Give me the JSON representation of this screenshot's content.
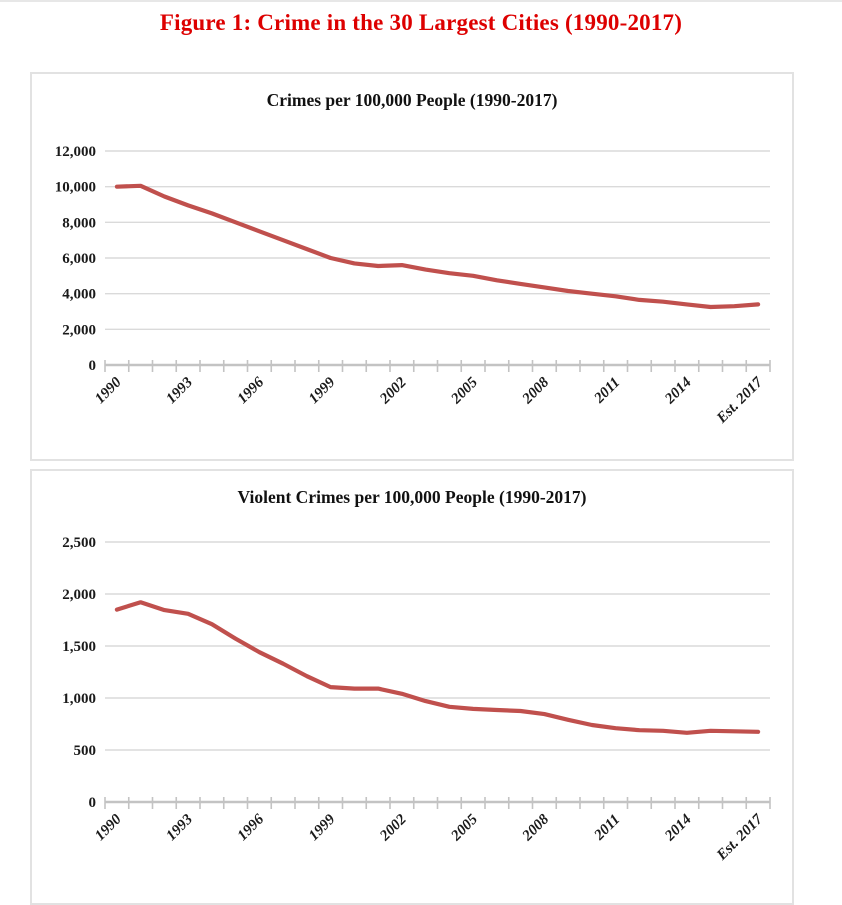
{
  "figure": {
    "title": "Figure 1: Crime in the 30 Largest Cities (1990-2017)"
  },
  "colors": {
    "title_red": "#DD0000",
    "line": "#C0504D",
    "gridline": "#DADADA",
    "axis": "#C3C3C3",
    "box_border": "#E2E2E2",
    "text": "#1A1A1A",
    "top_rule": "#E7E7E7"
  },
  "chart_data": [
    {
      "type": "line",
      "title": "Crimes per 100,000 People (1990-2017)",
      "xlabel": "",
      "ylabel": "",
      "grid": true,
      "legend": "none",
      "ylim": [
        0,
        12000
      ],
      "yticks": [
        {
          "value": 0,
          "label": "0"
        },
        {
          "value": 2000,
          "label": "2,000"
        },
        {
          "value": 4000,
          "label": "4,000"
        },
        {
          "value": 6000,
          "label": "6,000"
        },
        {
          "value": 8000,
          "label": "8,000"
        },
        {
          "value": 10000,
          "label": "10,000"
        },
        {
          "value": 12000,
          "label": "12,000"
        }
      ],
      "x_tick_labels": [
        "1990",
        "1993",
        "1996",
        "1999",
        "2002",
        "2005",
        "2008",
        "2011",
        "2014",
        "Est. 2017"
      ],
      "label_every": 3,
      "years": [
        "1990",
        "1991",
        "1992",
        "1993",
        "1994",
        "1995",
        "1996",
        "1997",
        "1998",
        "1999",
        "2000",
        "2001",
        "2002",
        "2003",
        "2004",
        "2005",
        "2006",
        "2007",
        "2008",
        "2009",
        "2010",
        "2011",
        "2012",
        "2013",
        "2014",
        "2015",
        "2016",
        "Est. 2017"
      ],
      "values": [
        10000,
        10050,
        9450,
        8950,
        8500,
        8000,
        7500,
        7000,
        6500,
        6000,
        5700,
        5550,
        5600,
        5350,
        5150,
        5000,
        4750,
        4550,
        4350,
        4150,
        4000,
        3850,
        3650,
        3550,
        3400,
        3250,
        3300,
        3400
      ]
    },
    {
      "type": "line",
      "title": "Violent Crimes per 100,000 People (1990-2017)",
      "xlabel": "",
      "ylabel": "",
      "grid": true,
      "legend": "none",
      "ylim": [
        0,
        2500
      ],
      "yticks": [
        {
          "value": 0,
          "label": "0"
        },
        {
          "value": 500,
          "label": "500"
        },
        {
          "value": 1000,
          "label": "1,000"
        },
        {
          "value": 1500,
          "label": "1,500"
        },
        {
          "value": 2000,
          "label": "2,000"
        },
        {
          "value": 2500,
          "label": "2,500"
        }
      ],
      "x_tick_labels": [
        "1990",
        "1993",
        "1996",
        "1999",
        "2002",
        "2005",
        "2008",
        "2011",
        "2014",
        "Est. 2017"
      ],
      "label_every": 3,
      "years": [
        "1990",
        "1991",
        "1992",
        "1993",
        "1994",
        "1995",
        "1996",
        "1997",
        "1998",
        "1999",
        "2000",
        "2001",
        "2002",
        "2003",
        "2004",
        "2005",
        "2006",
        "2007",
        "2008",
        "2009",
        "2010",
        "2011",
        "2012",
        "2013",
        "2014",
        "2015",
        "2016",
        "Est. 2017"
      ],
      "values": [
        1850,
        1920,
        1845,
        1810,
        1710,
        1570,
        1440,
        1330,
        1210,
        1105,
        1090,
        1090,
        1040,
        970,
        915,
        895,
        885,
        875,
        845,
        790,
        740,
        710,
        690,
        685,
        665,
        685,
        680,
        675
      ]
    }
  ]
}
